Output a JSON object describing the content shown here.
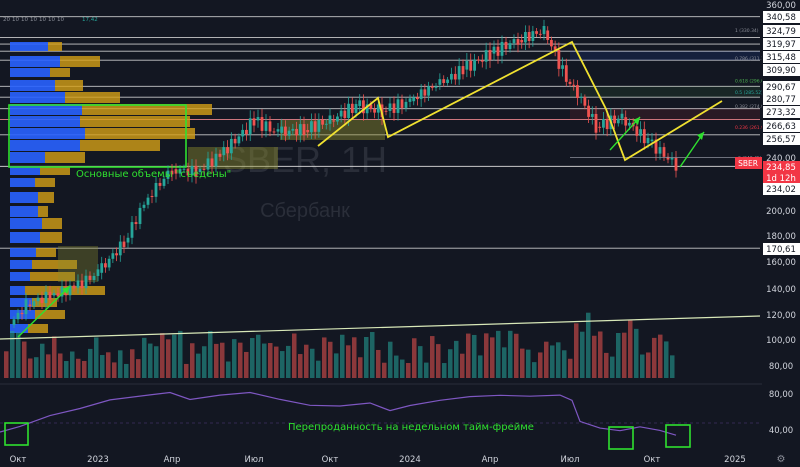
{
  "header": {
    "indicator_values": [
      "20",
      "10",
      "10",
      "10",
      "10",
      "10",
      "10"
    ],
    "extra_value": "17,42"
  },
  "watermark": {
    "ticker": "SBER, 1H",
    "name": "Сбербанк"
  },
  "annotations": {
    "volumes_eaten": "Основные объемы \"съедены\"",
    "oversold_weekly": "Перепроданность на недельном тайм-фрейме"
  },
  "fib_labels": [
    {
      "text": "1 (330.34)",
      "color": "#8c8f99"
    },
    {
      "text": "0.786 (311.18)",
      "color": "#8c8f99"
    },
    {
      "text": "0.618 (296.08)",
      "color": "#4caf50"
    },
    {
      "text": "0.5 (285.52)",
      "color": "#26a69a"
    },
    {
      "text": "0.382 (274.96)",
      "color": "#8c8f99"
    },
    {
      "text": "0.236 (261.90)",
      "color": "#f23645"
    },
    {
      "text": "0 (240.45)",
      "color": "#8c8f99"
    }
  ],
  "colors": {
    "background": "#131722",
    "up": "#26a69a",
    "down": "#ef5350",
    "volume_profile_blue": "#2962ff",
    "volume_profile_gold": "#d4a017",
    "annotation_green": "#2fe02f",
    "trend_yellow": "#f0e130",
    "price_badge": "#f23645"
  },
  "chart_data": {
    "type": "candlestick",
    "price_axis_ticks": [
      "360,00",
      "340,58",
      "324,79",
      "319,97",
      "315,48",
      "309,90",
      "290,67",
      "280,77",
      "273,32",
      "266,63",
      "256,57",
      "240,00",
      "234,85",
      "1d 12h",
      "234,02",
      "200,00",
      "180,00",
      "170,61",
      "160,00",
      "140,00",
      "120,00",
      "100,00",
      "80,00"
    ],
    "ylim": [
      76,
      360
    ],
    "horizontal_levels": [
      340.58,
      324.79,
      319.97,
      315.48,
      309.9,
      290.67,
      280.77,
      273.32,
      266.63,
      256.57,
      234.02,
      170.61
    ],
    "last_price": {
      "ticker": "SBER",
      "value": "234,85",
      "countdown": "1d 12h"
    },
    "x_ticks": [
      "Окт",
      "2023",
      "Апр",
      "Июл",
      "Окт",
      "2024",
      "Апр",
      "Июл",
      "Окт",
      "2025"
    ],
    "series_close_by_month": [
      {
        "t": "2022-09",
        "close": 112
      },
      {
        "t": "2022-10",
        "close": 128
      },
      {
        "t": "2022-11",
        "close": 135
      },
      {
        "t": "2022-12",
        "close": 141
      },
      {
        "t": "2023-01",
        "close": 152
      },
      {
        "t": "2023-02",
        "close": 175
      },
      {
        "t": "2023-03",
        "close": 212
      },
      {
        "t": "2023-04",
        "close": 232
      },
      {
        "t": "2023-05",
        "close": 230
      },
      {
        "t": "2023-06",
        "close": 242
      },
      {
        "t": "2023-07",
        "close": 266
      },
      {
        "t": "2023-08",
        "close": 258
      },
      {
        "t": "2023-09",
        "close": 260
      },
      {
        "t": "2023-10",
        "close": 266
      },
      {
        "t": "2023-11",
        "close": 275
      },
      {
        "t": "2023-12",
        "close": 272
      },
      {
        "t": "2024-01",
        "close": 278
      },
      {
        "t": "2024-02",
        "close": 292
      },
      {
        "t": "2024-03",
        "close": 304
      },
      {
        "t": "2024-04",
        "close": 314
      },
      {
        "t": "2024-05",
        "close": 323
      },
      {
        "t": "2024-06",
        "close": 330
      },
      {
        "t": "2024-07",
        "close": 292
      },
      {
        "t": "2024-08",
        "close": 262
      },
      {
        "t": "2024-09",
        "close": 268
      },
      {
        "t": "2024-10",
        "close": 252
      },
      {
        "t": "2024-11",
        "close": 234.85
      }
    ],
    "rsi_axis_ticks": [
      "80,00",
      "40,00"
    ],
    "rsi_ylim": [
      20,
      90
    ]
  }
}
